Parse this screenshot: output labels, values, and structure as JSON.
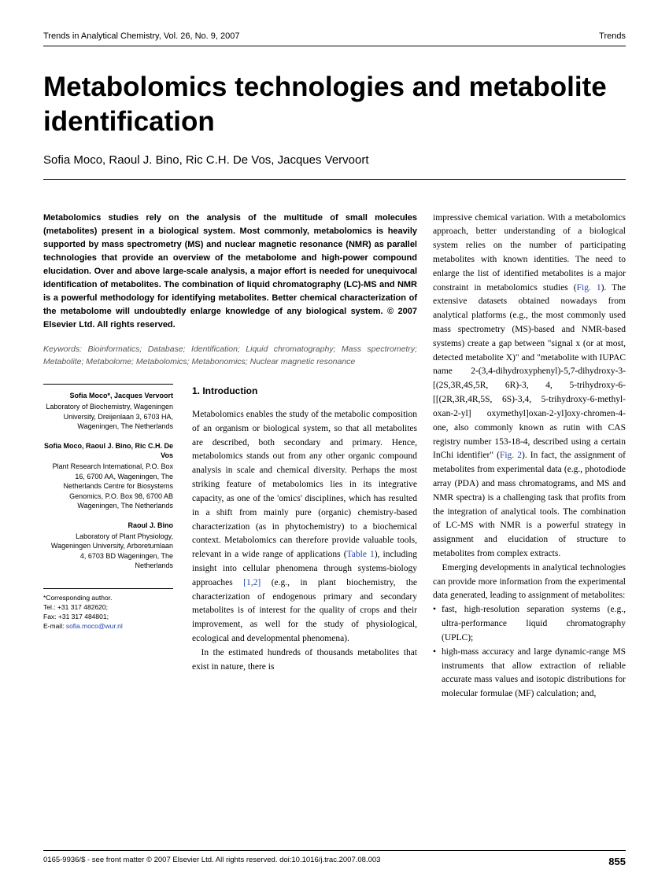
{
  "header": {
    "left": "Trends in Analytical Chemistry, Vol. 26, No. 9, 2007",
    "right": "Trends"
  },
  "title": "Metabolomics technologies and metabolite identification",
  "authors": "Sofia Moco, Raoul J. Bino, Ric C.H. De Vos, Jacques Vervoort",
  "abstract": "Metabolomics studies rely on the analysis of the multitude of small molecules (metabolites) present in a biological system. Most commonly, metabolomics is heavily supported by mass spectrometry (MS) and nuclear magnetic resonance (NMR) as parallel technologies that provide an overview of the metabolome and high-power compound elucidation. Over and above large-scale analysis, a major effort is needed for unequivocal identification of metabolites. The combination of liquid chromatography (LC)-MS and NMR is a powerful methodology for identifying metabolites. Better chemical characterization of the metabolome will undoubtedly enlarge knowledge of any biological system. © 2007 Elsevier Ltd. All rights reserved.",
  "keywords_label": "Keywords:",
  "keywords": " Bioinformatics; Database; Identification; Liquid chromatography; Mass spectrometry; Metabolite; Metabolome; Metabolomics; Metabonomics; Nuclear magnetic resonance",
  "affiliations": [
    {
      "names": "Sofia Moco*, Jacques Vervoort",
      "addr": "Laboratory of Biochemistry, Wageningen University, Dreijenlaan 3, 6703 HA, Wageningen, The Netherlands"
    },
    {
      "names": "Sofia Moco, Raoul J. Bino, Ric C.H. De Vos",
      "addr": "Plant Research International, P.O. Box 16, 6700 AA, Wageningen, The Netherlands Centre for Biosystems Genomics, P.O. Box 98, 6700 AB Wageningen, The Netherlands"
    },
    {
      "names": "Raoul J. Bino",
      "addr": "Laboratory of Plant Physiology, Wageningen University, Arboretumlaan 4, 6703 BD Wageningen, The Netherlands"
    }
  ],
  "corresponding": {
    "label": "*Corresponding author.",
    "tel": "Tel.: +31 317 482620;",
    "fax": "Fax: +31 317 484801;",
    "email_label": "E-mail: ",
    "email": "sofia.moco@wur.nl"
  },
  "section_heading": "1. Introduction",
  "intro_p1a": "Metabolomics enables the study of the metabolic composition of an organism or biological system, so that all metabolites are described, both secondary and primary. Hence, metabolomics stands out from any other organic compound analysis in scale and chemical diversity. Perhaps the most striking feature of metabolomics lies in its integrative capacity, as one of the 'omics' disciplines, which has resulted in a shift from mainly pure (organic) chemistry-based characterization (as in phytochemistry) to a biochemical context. Metabolomics can therefore provide valuable tools, relevant in a wide range of applications (",
  "table1": "Table 1",
  "intro_p1b": "), including insight into cellular phenomena through systems-biology approaches ",
  "refs12": "[1,2]",
  "intro_p1c": " (e.g., in plant biochemistry, the characterization of endogenous primary and secondary metabolites is of interest for the quality of crops and their improvement, as well for the study of physiological, ecological and developmental phenomena).",
  "intro_p2": "In the estimated hundreds of thousands metabolites that exist in nature, there is",
  "right_p1a": "impressive chemical variation. With a metabolomics approach, better understanding of a biological system relies on the number of participating metabolites with known identities. The need to enlarge the list of identified metabolites is a major constraint in metabolomics studies (",
  "fig1": "Fig. 1",
  "right_p1b": "). The extensive datasets obtained nowadays from analytical platforms (e.g., the most commonly used mass spectrometry (MS)-based and NMR-based systems) create a gap between \"signal x (or at most, detected metabolite X)\" and \"metabolite with IUPAC name 2-(3,4-dihydroxyphenyl)-5,7-dihydroxy-3-[(2S,3R,4S,5R, 6R)-3, 4, 5-trihydroxy-6-[[(2R,3R,4R,5S, 6S)-3,4, 5-trihydroxy-6-methyl-oxan-2-yl] oxymethyl]oxan-2-yl]oxy-chromen-4-one, also commonly known as rutin with CAS registry number 153-18-4, described using a certain InChi identifier\" (",
  "fig2": "Fig. 2",
  "right_p1c": "). In fact, the assignment of metabolites from experimental data (e.g., photodiode array (PDA) and mass chromatograms, and MS and NMR spectra) is a challenging task that profits from the integration of analytical tools. The combination of LC-MS with NMR is a powerful strategy in assignment and elucidation of structure to metabolites from complex extracts.",
  "right_p2": "Emerging developments in analytical technologies can provide more information from the experimental data generated, leading to assignment of metabolites:",
  "bullets": [
    "fast, high-resolution separation systems (e.g., ultra-performance liquid chromatography (UPLC);",
    "high-mass accuracy and large dynamic-range MS instruments that allow extraction of reliable accurate mass values and isotopic distributions for molecular formulae (MF) calculation; and,"
  ],
  "footer": {
    "left": "0165-9936/$ - see front matter © 2007 Elsevier Ltd. All rights reserved. doi:10.1016/j.trac.2007.08.003",
    "page": "855"
  },
  "colors": {
    "link": "#2244aa",
    "text": "#000000",
    "muted": "#555555",
    "background": "#ffffff"
  },
  "typography": {
    "title_fontsize": 35,
    "body_fontsize": 11.5,
    "abstract_fontsize": 11,
    "affil_fontsize": 9
  }
}
